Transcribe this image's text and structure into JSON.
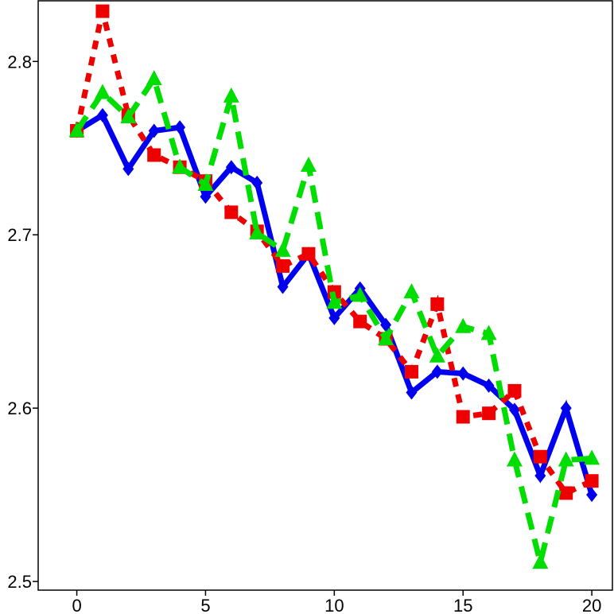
{
  "chart_data": {
    "type": "line",
    "title": "",
    "xlabel": "",
    "ylabel": "",
    "xlim": [
      -1.5,
      20.8
    ],
    "ylim": [
      2.495,
      2.835
    ],
    "x_ticks": [
      0,
      5,
      10,
      15,
      20
    ],
    "y_ticks": [
      2.5,
      2.6,
      2.7,
      2.8
    ],
    "x_tick_labels": [
      "0",
      "5",
      "10",
      "15",
      "20"
    ],
    "y_tick_labels": [
      "2.5",
      "2.6",
      "2.7",
      "2.8"
    ],
    "grid": false,
    "legend": "none",
    "x": [
      0,
      1,
      2,
      3,
      4,
      5,
      6,
      7,
      8,
      9,
      10,
      11,
      12,
      13,
      14,
      15,
      16,
      17,
      18,
      19,
      20
    ],
    "series": [
      {
        "color": "#0000ee",
        "line_style": "solid",
        "marker": "diamond",
        "values": [
          2.76,
          2.769,
          2.738,
          2.76,
          2.762,
          2.722,
          2.739,
          2.73,
          2.67,
          2.689,
          2.652,
          2.669,
          2.648,
          2.609,
          2.621,
          2.62,
          2.613,
          2.599,
          2.561,
          2.6,
          2.55
        ]
      },
      {
        "color": "#ee0000",
        "line_style": "dotted",
        "marker": "square",
        "values": [
          2.76,
          2.829,
          2.769,
          2.746,
          2.739,
          2.731,
          2.713,
          2.702,
          2.682,
          2.689,
          2.667,
          2.65,
          2.64,
          2.621,
          2.66,
          2.595,
          2.597,
          2.61,
          2.572,
          2.551,
          2.558
        ]
      },
      {
        "color": "#00dd00",
        "line_style": "dashed",
        "marker": "triangle",
        "values": [
          2.76,
          2.782,
          2.768,
          2.79,
          2.739,
          2.729,
          2.78,
          2.701,
          2.691,
          2.74,
          2.661,
          2.665,
          2.64,
          2.667,
          2.63,
          2.647,
          2.643,
          2.57,
          2.511,
          2.57,
          2.571
        ]
      }
    ]
  }
}
